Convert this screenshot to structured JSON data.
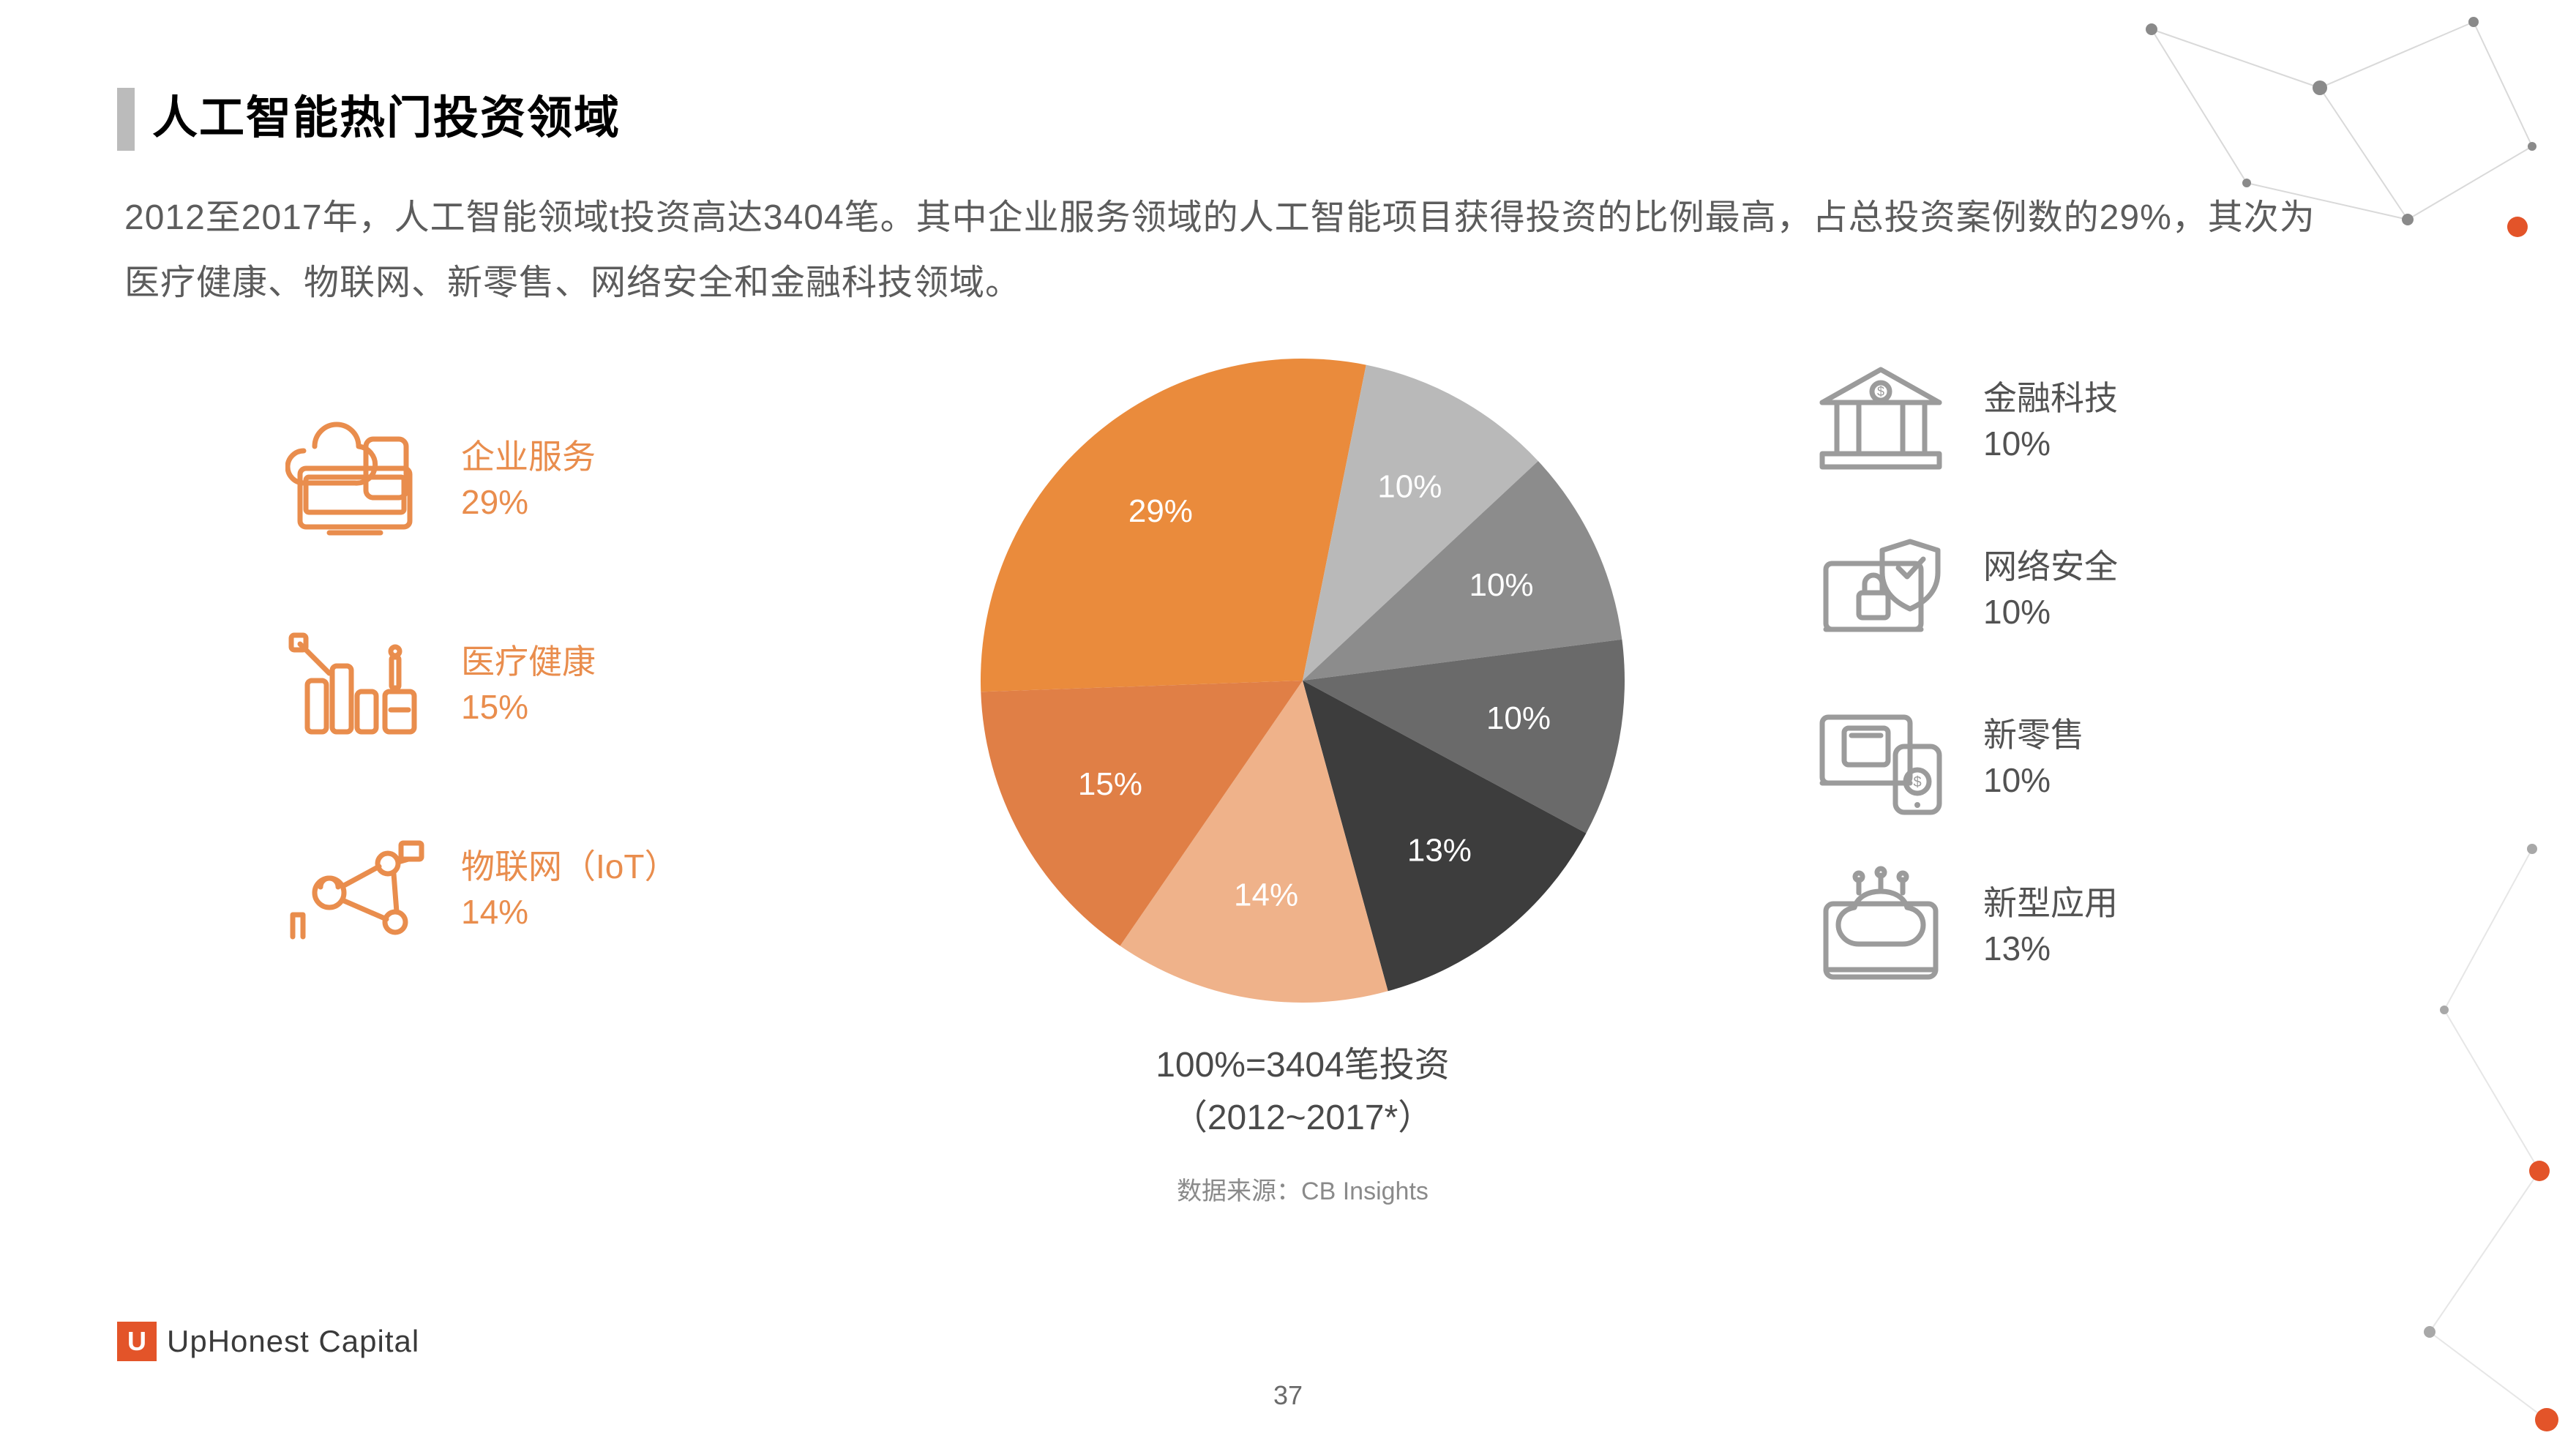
{
  "title": "人工智能热门投资领域",
  "body": "2012至2017年，人工智能领域t投资高达3404笔。其中企业服务领域的人工智能项目获得投资的比例最高，占总投资案例数的29%，其次为医疗健康、物联网、新零售、网络安全和金融科技领域。",
  "pie": {
    "type": "pie",
    "start_angle_deg": 178,
    "direction": "clockwise",
    "radius": 440,
    "label_radius": 300,
    "label_fontsize": 44,
    "label_color": "#ffffff",
    "slices": [
      {
        "key": "enterprise",
        "label": "29%",
        "value": 29,
        "color": "#ea8b3c"
      },
      {
        "key": "fintech",
        "label": "10%",
        "value": 10,
        "color": "#b9b9b9"
      },
      {
        "key": "security",
        "label": "10%",
        "value": 10,
        "color": "#8c8c8c"
      },
      {
        "key": "retail",
        "label": "10%",
        "value": 10,
        "color": "#6a6a6a"
      },
      {
        "key": "newapps",
        "label": "13%",
        "value": 13,
        "color": "#3d3d3d"
      },
      {
        "key": "iot",
        "label": "14%",
        "value": 14,
        "color": "#efb28a"
      },
      {
        "key": "health",
        "label": "15%",
        "value": 15,
        "color": "#e07f46"
      }
    ]
  },
  "caption_line1": "100%=3404笔投资",
  "caption_line2": "（2012~2017*）",
  "source": "数据来源：CB Insights",
  "legend_left": [
    {
      "name": "企业服务",
      "pct": "29%",
      "icon": "enterprise"
    },
    {
      "name": "医疗健康",
      "pct": "15%",
      "icon": "health"
    },
    {
      "name": "物联网（IoT）",
      "pct": "14%",
      "icon": "iot"
    }
  ],
  "legend_right": [
    {
      "name": "金融科技",
      "pct": "10%",
      "icon": "fintech"
    },
    {
      "name": "网络安全",
      "pct": "10%",
      "icon": "security"
    },
    {
      "name": "新零售",
      "pct": "10%",
      "icon": "retail"
    },
    {
      "name": "新型应用",
      "pct": "13%",
      "icon": "newapps"
    }
  ],
  "colors": {
    "accent_orange": "#e98d4d",
    "icon_gray": "#9b9b9b",
    "title_black": "#000000",
    "body_gray": "#5c5c5c",
    "logo_bg": "#e35429"
  },
  "footer": {
    "brand": "UpHonest Capital",
    "mark": "U"
  },
  "page_number": "37"
}
